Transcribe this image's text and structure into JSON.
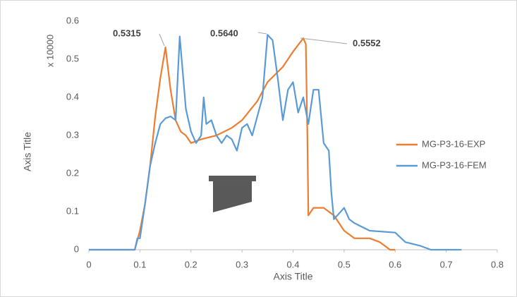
{
  "chart_data": {
    "type": "line",
    "xlabel": "Axis Title",
    "ylabel": "Axis Title",
    "y_unit_label": "x 10000",
    "xlim": [
      0,
      0.8
    ],
    "xticks": [
      0,
      0.1,
      0.2,
      0.3,
      0.4,
      0.5,
      0.6,
      0.7,
      0.8
    ],
    "ylim": [
      0,
      0.6
    ],
    "yticks": [
      0,
      0.1,
      0.2,
      0.3,
      0.4,
      0.5,
      0.6
    ],
    "grid": false,
    "legend": "right",
    "annotations": [
      "0.5315",
      "0.5640",
      "0.5552"
    ],
    "series": [
      {
        "name": "MG-P3-16-EXP",
        "color": "#ed7d31",
        "x": [
          0,
          0.09,
          0.1,
          0.11,
          0.12,
          0.13,
          0.14,
          0.15,
          0.16,
          0.17,
          0.18,
          0.19,
          0.2,
          0.22,
          0.25,
          0.28,
          0.3,
          0.33,
          0.35,
          0.38,
          0.4,
          0.42,
          0.425,
          0.428,
          0.43,
          0.44,
          0.46,
          0.48,
          0.5,
          0.52,
          0.55,
          0.57,
          0.59,
          0.6
        ],
        "values": [
          0,
          0,
          0.05,
          0.12,
          0.22,
          0.35,
          0.45,
          0.5315,
          0.42,
          0.34,
          0.31,
          0.3,
          0.28,
          0.29,
          0.3,
          0.32,
          0.34,
          0.39,
          0.44,
          0.48,
          0.52,
          0.5552,
          0.54,
          0.3,
          0.09,
          0.11,
          0.11,
          0.09,
          0.05,
          0.03,
          0.03,
          0.02,
          0,
          0
        ]
      },
      {
        "name": "MG-P3-16-FEM",
        "color": "#5b9bd5",
        "x": [
          0,
          0.09,
          0.095,
          0.1,
          0.11,
          0.12,
          0.13,
          0.14,
          0.15,
          0.16,
          0.17,
          0.178,
          0.19,
          0.2,
          0.21,
          0.22,
          0.225,
          0.23,
          0.24,
          0.25,
          0.26,
          0.27,
          0.28,
          0.29,
          0.3,
          0.31,
          0.32,
          0.33,
          0.34,
          0.35,
          0.36,
          0.37,
          0.38,
          0.39,
          0.4,
          0.41,
          0.42,
          0.43,
          0.44,
          0.45,
          0.46,
          0.47,
          0.475,
          0.48,
          0.5,
          0.51,
          0.52,
          0.55,
          0.6,
          0.62,
          0.65,
          0.67,
          0.73
        ],
        "values": [
          0,
          0,
          0.03,
          0.03,
          0.12,
          0.22,
          0.28,
          0.33,
          0.345,
          0.35,
          0.34,
          0.56,
          0.37,
          0.31,
          0.28,
          0.3,
          0.4,
          0.33,
          0.34,
          0.3,
          0.28,
          0.3,
          0.29,
          0.26,
          0.32,
          0.33,
          0.3,
          0.35,
          0.4,
          0.564,
          0.55,
          0.45,
          0.34,
          0.42,
          0.44,
          0.36,
          0.4,
          0.33,
          0.42,
          0.42,
          0.28,
          0.26,
          0.15,
          0.08,
          0.11,
          0.08,
          0.07,
          0.05,
          0.045,
          0.02,
          0.01,
          0,
          0
        ]
      }
    ]
  }
}
